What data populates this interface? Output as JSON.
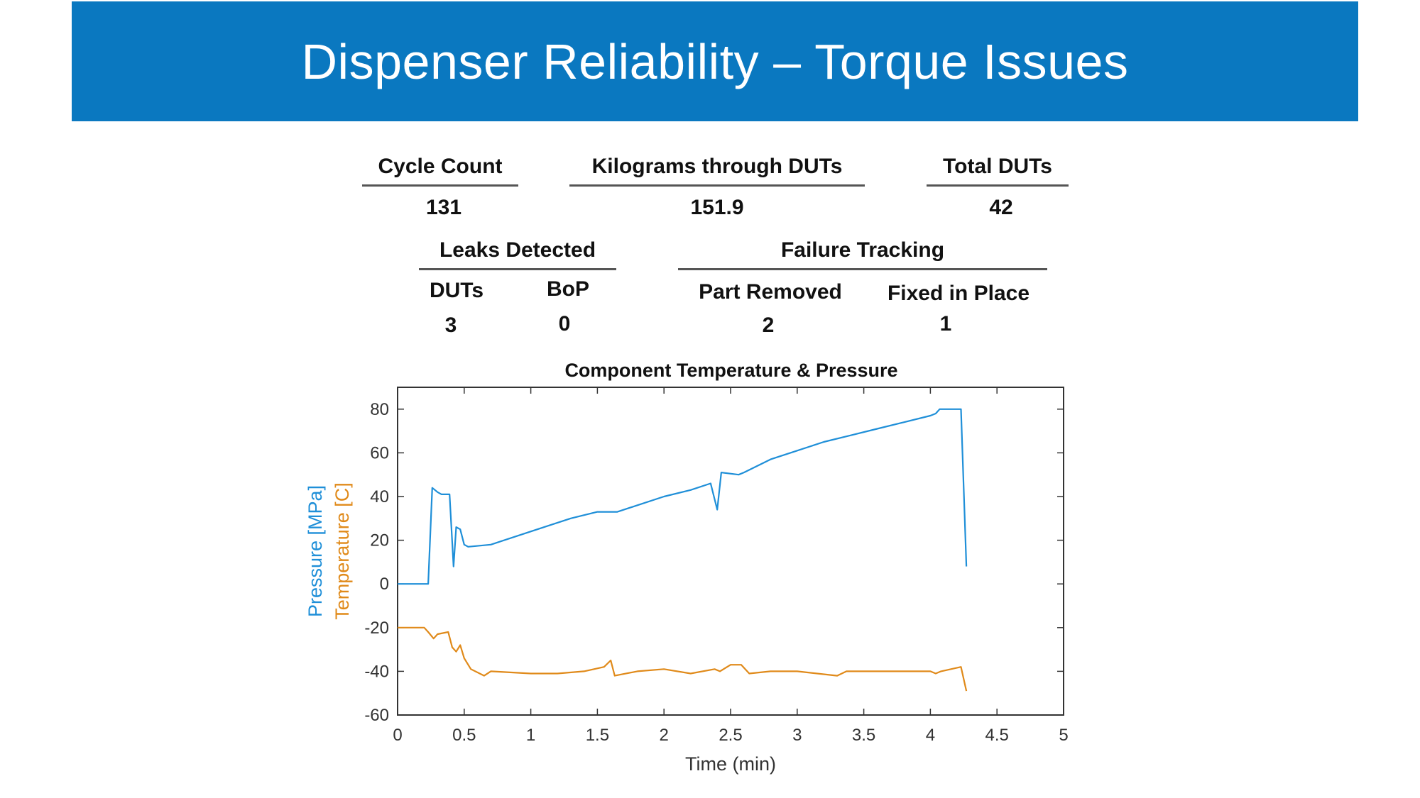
{
  "slide": {
    "title": "Dispenser Reliability – Torque Issues"
  },
  "stats": {
    "cycle_count_label": "Cycle Count",
    "cycle_count_value": "131",
    "kg_label": "Kilograms through DUTs",
    "kg_value": "151.9",
    "total_duts_label": "Total DUTs",
    "total_duts_value": "42",
    "leaks_label": "Leaks Detected",
    "leaks_duts_label": "DUTs",
    "leaks_duts_value": "3",
    "leaks_bop_label": "BoP",
    "leaks_bop_value": "0",
    "failure_label": "Failure Tracking",
    "part_removed_label": "Part Removed",
    "part_removed_value": "2",
    "fixed_label": "Fixed in Place",
    "fixed_value": "1"
  },
  "chart_data": {
    "type": "line",
    "title": "Component Temperature & Pressure",
    "xlabel": "Time (min)",
    "ylabel": "Pressure [MPa] / Temperature [C]",
    "ylabel_parts": [
      "Pressure [MPa]",
      "Temperature [C]"
    ],
    "xlim": [
      0,
      5
    ],
    "ylim": [
      -60,
      90
    ],
    "xticks": [
      0,
      0.5,
      1,
      1.5,
      2,
      2.5,
      3,
      3.5,
      4,
      4.5,
      5
    ],
    "xtick_labels": [
      "0",
      "0.5",
      "1",
      "1.5",
      "2",
      "2.5",
      "3",
      "3.5",
      "4",
      "4.5",
      "5"
    ],
    "yticks": [
      -60,
      -40,
      -20,
      0,
      20,
      40,
      60,
      80
    ],
    "ytick_labels": [
      "-60",
      "-40",
      "-20",
      "0",
      "20",
      "40",
      "60",
      "80"
    ],
    "grid": false,
    "series": [
      {
        "name": "Pressure [MPa]",
        "color": "#1f8fd8",
        "x": [
          0,
          0.23,
          0.26,
          0.3,
          0.33,
          0.39,
          0.42,
          0.44,
          0.47,
          0.5,
          0.53,
          0.7,
          0.9,
          1.1,
          1.3,
          1.5,
          1.65,
          1.8,
          2.0,
          2.2,
          2.35,
          2.4,
          2.43,
          2.56,
          2.6,
          2.8,
          3.0,
          3.2,
          3.4,
          3.6,
          3.8,
          4.0,
          4.04,
          4.07,
          4.23,
          4.27
        ],
        "y": [
          0,
          0,
          44,
          42,
          41,
          41,
          8,
          26,
          25,
          18,
          17,
          18,
          22,
          26,
          30,
          33,
          33,
          36,
          40,
          43,
          46,
          34,
          51,
          50,
          51,
          57,
          61,
          65,
          68,
          71,
          74,
          77,
          78,
          80,
          80,
          8
        ]
      },
      {
        "name": "Temperature [C]",
        "color": "#e08a1a",
        "x": [
          0,
          0.1,
          0.2,
          0.23,
          0.27,
          0.3,
          0.38,
          0.41,
          0.44,
          0.47,
          0.5,
          0.55,
          0.65,
          0.7,
          1.0,
          1.2,
          1.4,
          1.55,
          1.6,
          1.63,
          1.8,
          2.0,
          2.2,
          2.38,
          2.42,
          2.5,
          2.58,
          2.64,
          2.8,
          3.0,
          3.3,
          3.37,
          3.6,
          4.0,
          4.04,
          4.08,
          4.23,
          4.27
        ],
        "y": [
          -20,
          -20,
          -20,
          -22,
          -25,
          -23,
          -22,
          -29,
          -31,
          -28,
          -34,
          -39,
          -42,
          -40,
          -41,
          -41,
          -40,
          -38,
          -35,
          -42,
          -40,
          -39,
          -41,
          -39,
          -40,
          -37,
          -37,
          -41,
          -40,
          -40,
          -42,
          -40,
          -40,
          -40,
          -41,
          -40,
          -38,
          -49
        ]
      }
    ]
  }
}
